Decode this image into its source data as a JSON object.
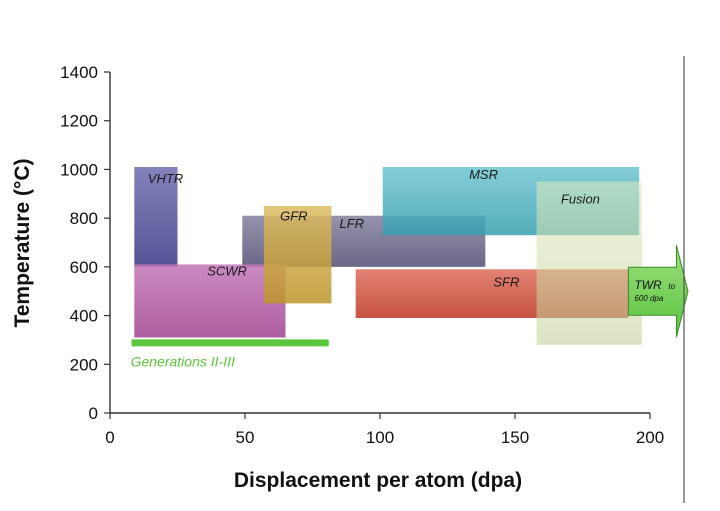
{
  "chart_data": {
    "type": "range-bar",
    "xlabel": "Displacement per atom (dpa)",
    "ylabel": "Temperature (°C)",
    "xlim": [
      0,
      200
    ],
    "ylim": [
      0,
      1400
    ],
    "x_ticks": [
      0,
      50,
      100,
      150,
      200
    ],
    "y_ticks": [
      0,
      200,
      400,
      600,
      800,
      1000,
      1200,
      1400
    ],
    "regions": [
      {
        "name": "VHTR",
        "x0": 9,
        "x1": 25,
        "y0": 600,
        "y1": 1010,
        "color": "#3d3c94"
      },
      {
        "name": "LFR",
        "x0": 49,
        "x1": 139,
        "y0": 600,
        "y1": 810,
        "color": "#5a557f"
      },
      {
        "name": "MSR",
        "x0": 101,
        "x1": 196,
        "y0": 730,
        "y1": 1010,
        "color": "#3eb1c2"
      },
      {
        "name": "SCWR",
        "x0": 9,
        "x1": 65,
        "y0": 310,
        "y1": 610,
        "color": "#b0489f"
      },
      {
        "name": "GFR",
        "x0": 57,
        "x1": 82,
        "y0": 450,
        "y1": 850,
        "color": "#d2a52d"
      },
      {
        "name": "SFR",
        "x0": 91,
        "x1": 192,
        "y0": 390,
        "y1": 590,
        "color": "#d23b24"
      },
      {
        "name": "Fusion",
        "x0": 158,
        "x1": 197,
        "y0": 280,
        "y1": 950,
        "color": "#d5e5a8"
      }
    ],
    "generations": {
      "label": "Generations II-III",
      "x0": 8,
      "x1": 81,
      "y": 290,
      "color": "#5cc63c"
    },
    "twr": {
      "label": "TWR",
      "sublabel_to": "to",
      "sublabel_dpa": "600 dpa",
      "x0": 192,
      "x1": 214,
      "y_center": 500,
      "color": "#58c43c"
    }
  }
}
